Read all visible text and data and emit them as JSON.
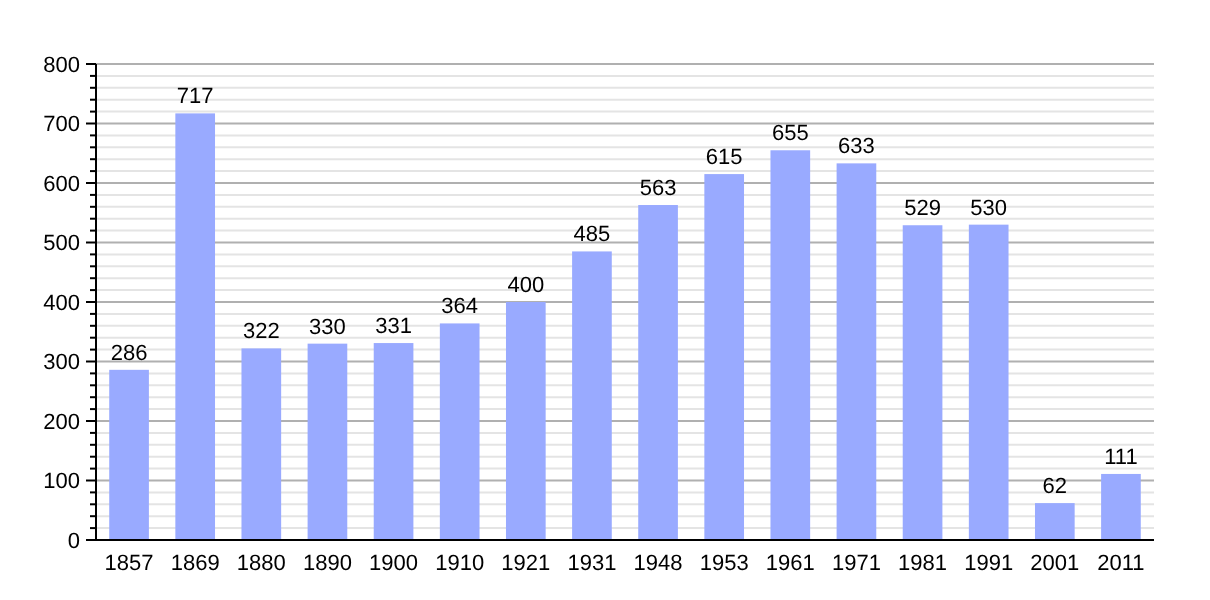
{
  "chart_data": {
    "type": "bar",
    "categories": [
      "1857",
      "1869",
      "1880",
      "1890",
      "1900",
      "1910",
      "1921",
      "1931",
      "1948",
      "1953",
      "1961",
      "1971",
      "1981",
      "1991",
      "2001",
      "2011"
    ],
    "values": [
      286,
      717,
      322,
      330,
      331,
      364,
      400,
      485,
      563,
      615,
      655,
      633,
      529,
      530,
      62,
      111
    ],
    "color": "#99aaff",
    "data_labels": true,
    "grid": true,
    "ylim": [
      0,
      800
    ],
    "yticks": [
      0,
      {
        "value": 20,
        "label": null
      },
      {
        "value": 40,
        "label": null
      },
      {
        "value": 60,
        "label": null
      },
      {
        "value": 80,
        "label": null
      },
      100,
      {
        "value": 120,
        "label": null
      },
      {
        "value": 140,
        "label": null
      },
      {
        "value": 160,
        "label": null
      },
      {
        "value": 180,
        "label": null
      },
      200,
      {
        "value": 220,
        "label": null
      },
      {
        "value": 240,
        "label": null
      },
      {
        "value": 260,
        "label": null
      },
      {
        "value": 280,
        "label": null
      },
      300,
      {
        "value": 320,
        "label": null
      },
      {
        "value": 340,
        "label": null
      },
      {
        "value": 360,
        "label": null
      },
      {
        "value": 380,
        "label": null
      },
      400,
      {
        "value": 420,
        "label": null
      },
      {
        "value": 440,
        "label": null
      },
      {
        "value": 460,
        "label": null
      },
      {
        "value": 480,
        "label": null
      },
      500,
      {
        "value": 520,
        "label": null
      },
      {
        "value": 540,
        "label": null
      },
      {
        "value": 560,
        "label": null
      },
      {
        "value": 580,
        "label": null
      },
      600,
      {
        "value": 620,
        "label": null
      },
      {
        "value": 640,
        "label": null
      },
      {
        "value": 660,
        "label": null
      },
      {
        "value": 680,
        "label": null
      },
      700,
      {
        "value": 720,
        "label": null
      },
      {
        "value": 740,
        "label": null
      },
      {
        "value": 760,
        "label": null
      },
      {
        "value": 780,
        "label": null
      },
      800
    ]
  }
}
